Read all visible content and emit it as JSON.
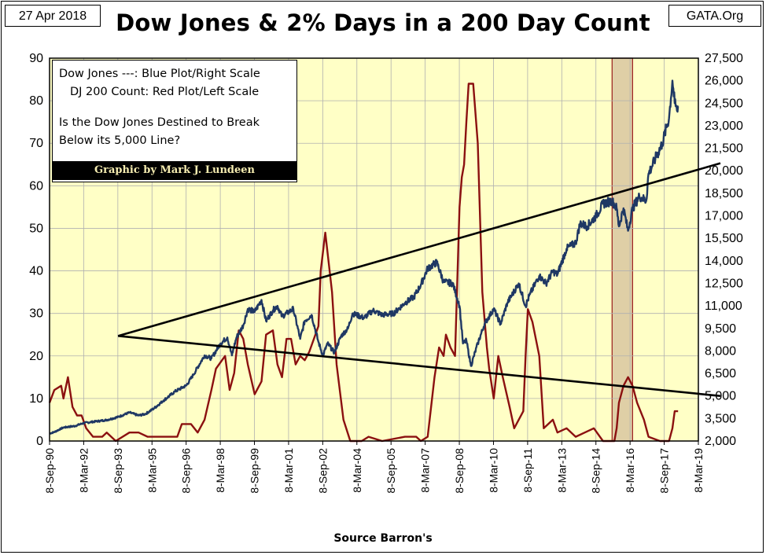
{
  "header": {
    "date": "27 Apr 2018",
    "brand": "GATA.Org",
    "title": "Dow Jones & 2% Days in a 200 Day Count"
  },
  "footer": {
    "source": "Source Barron's"
  },
  "legend": {
    "line1": "Dow Jones ---: Blue Plot/Right Scale",
    "line2": "DJ 200 Count: Red Plot/Left Scale",
    "line3": "Is the Dow Jones Destined to Break",
    "line4": "Below its 5,000 Line?",
    "credit": "Graphic by Mark J. Lundeen"
  },
  "colors": {
    "plot_bg": "#ffffc6",
    "grid": "#b0b0b0",
    "dow_line": "#1f3864",
    "count_line": "#8b1010",
    "trend_line": "#000000",
    "shade_fill": "#d9c7a0",
    "shade_border": "#9b1c1c"
  },
  "chart_data": {
    "type": "line",
    "left_axis": {
      "ticks": [
        0,
        10,
        20,
        30,
        40,
        50,
        60,
        70,
        80,
        90
      ],
      "range": [
        0,
        90
      ]
    },
    "right_axis": {
      "ticks": [
        "2,000",
        "3,500",
        "5,000",
        "6,500",
        "8,000",
        "9,500",
        "11,000",
        "12,500",
        "14,000",
        "15,500",
        "17,000",
        "18,500",
        "20,000",
        "21,500",
        "23,000",
        "24,500",
        "26,000",
        "27,500"
      ],
      "range": [
        2000,
        27500
      ]
    },
    "x_ticks": [
      "8-Sep-90",
      "8-Mar-92",
      "8-Sep-93",
      "8-Mar-95",
      "8-Sep-96",
      "8-Mar-98",
      "8-Sep-99",
      "8-Mar-01",
      "8-Sep-02",
      "8-Mar-04",
      "8-Sep-05",
      "8-Mar-07",
      "8-Sep-08",
      "8-Mar-10",
      "8-Sep-11",
      "8-Mar-13",
      "8-Sep-14",
      "8-Mar-16",
      "8-Sep-17",
      "8-Mar-19"
    ],
    "x_range": [
      1990.69,
      2019.19
    ],
    "shaded_region": [
      2015.4,
      2016.3
    ],
    "series": [
      {
        "name": "Dow Jones",
        "axis": "right",
        "points": [
          [
            1990.69,
            2500
          ],
          [
            1990.9,
            2600
          ],
          [
            1991.3,
            2900
          ],
          [
            1991.8,
            3000
          ],
          [
            1992.2,
            3200
          ],
          [
            1992.7,
            3300
          ],
          [
            1993.2,
            3400
          ],
          [
            1993.7,
            3600
          ],
          [
            1994.2,
            3900
          ],
          [
            1994.6,
            3700
          ],
          [
            1994.9,
            3800
          ],
          [
            1995.3,
            4200
          ],
          [
            1995.7,
            4700
          ],
          [
            1996.2,
            5300
          ],
          [
            1996.7,
            5700
          ],
          [
            1997.0,
            6400
          ],
          [
            1997.5,
            7700
          ],
          [
            1997.8,
            7500
          ],
          [
            1998.2,
            8500
          ],
          [
            1998.5,
            8900
          ],
          [
            1998.7,
            7700
          ],
          [
            1998.9,
            8900
          ],
          [
            1999.2,
            9700
          ],
          [
            1999.4,
            10800
          ],
          [
            1999.7,
            10600
          ],
          [
            2000.0,
            11400
          ],
          [
            2000.2,
            10000
          ],
          [
            2000.5,
            10700
          ],
          [
            2000.7,
            11000
          ],
          [
            2000.9,
            10300
          ],
          [
            2001.2,
            10600
          ],
          [
            2001.4,
            10800
          ],
          [
            2001.7,
            8800
          ],
          [
            2001.9,
            10000
          ],
          [
            2002.2,
            10400
          ],
          [
            2002.5,
            8600
          ],
          [
            2002.7,
            7700
          ],
          [
            2002.9,
            8500
          ],
          [
            2003.2,
            7900
          ],
          [
            2003.5,
            9000
          ],
          [
            2003.8,
            9500
          ],
          [
            2004.0,
            10500
          ],
          [
            2004.5,
            10200
          ],
          [
            2004.9,
            10700
          ],
          [
            2005.3,
            10400
          ],
          [
            2005.8,
            10500
          ],
          [
            2006.3,
            11200
          ],
          [
            2006.7,
            11600
          ],
          [
            2007.0,
            12400
          ],
          [
            2007.3,
            13500
          ],
          [
            2007.7,
            13900
          ],
          [
            2008.0,
            12600
          ],
          [
            2008.4,
            12500
          ],
          [
            2008.7,
            11000
          ],
          [
            2008.85,
            8500
          ],
          [
            2009.0,
            8700
          ],
          [
            2009.2,
            7000
          ],
          [
            2009.5,
            8500
          ],
          [
            2009.8,
            9800
          ],
          [
            2010.2,
            10800
          ],
          [
            2010.5,
            9800
          ],
          [
            2010.8,
            11200
          ],
          [
            2011.3,
            12500
          ],
          [
            2011.6,
            11000
          ],
          [
            2011.8,
            11800
          ],
          [
            2012.2,
            13000
          ],
          [
            2012.5,
            12500
          ],
          [
            2012.8,
            13300
          ],
          [
            2013.0,
            13100
          ],
          [
            2013.4,
            14800
          ],
          [
            2013.8,
            15200
          ],
          [
            2014.0,
            16500
          ],
          [
            2014.3,
            16300
          ],
          [
            2014.7,
            17000
          ],
          [
            2015.0,
            17800
          ],
          [
            2015.4,
            18000
          ],
          [
            2015.6,
            17500
          ],
          [
            2015.7,
            16300
          ],
          [
            2015.9,
            17500
          ],
          [
            2016.1,
            16000
          ],
          [
            2016.3,
            17500
          ],
          [
            2016.6,
            18300
          ],
          [
            2016.9,
            18000
          ],
          [
            2017.0,
            19800
          ],
          [
            2017.3,
            20800
          ],
          [
            2017.6,
            21800
          ],
          [
            2017.9,
            23500
          ],
          [
            2018.05,
            26000
          ],
          [
            2018.15,
            24500
          ],
          [
            2018.25,
            24000
          ],
          [
            2018.32,
            24300
          ]
        ]
      },
      {
        "name": "DJ 200 Count",
        "axis": "left",
        "points": [
          [
            1990.69,
            9
          ],
          [
            1990.9,
            12
          ],
          [
            1991.2,
            13
          ],
          [
            1991.3,
            10
          ],
          [
            1991.5,
            15
          ],
          [
            1991.7,
            8
          ],
          [
            1991.9,
            6
          ],
          [
            1992.1,
            6
          ],
          [
            1992.3,
            3
          ],
          [
            1992.6,
            1
          ],
          [
            1993.0,
            1
          ],
          [
            1993.2,
            2
          ],
          [
            1993.6,
            0
          ],
          [
            1994.2,
            2
          ],
          [
            1994.6,
            2
          ],
          [
            1995.0,
            1
          ],
          [
            1995.7,
            1
          ],
          [
            1996.3,
            1
          ],
          [
            1996.5,
            4
          ],
          [
            1996.9,
            4
          ],
          [
            1997.2,
            2
          ],
          [
            1997.5,
            5
          ],
          [
            1997.8,
            12
          ],
          [
            1998.0,
            17
          ],
          [
            1998.4,
            20
          ],
          [
            1998.6,
            12
          ],
          [
            1998.8,
            16
          ],
          [
            1999.0,
            26
          ],
          [
            1999.2,
            24
          ],
          [
            1999.4,
            18
          ],
          [
            1999.7,
            11
          ],
          [
            2000.0,
            14
          ],
          [
            2000.2,
            25
          ],
          [
            2000.5,
            26
          ],
          [
            2000.7,
            18
          ],
          [
            2000.9,
            15
          ],
          [
            2001.1,
            24
          ],
          [
            2001.3,
            24
          ],
          [
            2001.5,
            18
          ],
          [
            2001.7,
            20
          ],
          [
            2001.9,
            19
          ],
          [
            2002.1,
            21
          ],
          [
            2002.5,
            27
          ],
          [
            2002.6,
            40
          ],
          [
            2002.8,
            49
          ],
          [
            2002.95,
            42
          ],
          [
            2003.1,
            35
          ],
          [
            2003.3,
            18
          ],
          [
            2003.6,
            5
          ],
          [
            2003.9,
            0
          ],
          [
            2004.4,
            0
          ],
          [
            2004.7,
            1
          ],
          [
            2005.3,
            0
          ],
          [
            2006.3,
            1
          ],
          [
            2006.8,
            1
          ],
          [
            2007.0,
            0
          ],
          [
            2007.3,
            1
          ],
          [
            2007.6,
            15
          ],
          [
            2007.8,
            22
          ],
          [
            2008.0,
            20
          ],
          [
            2008.1,
            25
          ],
          [
            2008.3,
            22
          ],
          [
            2008.5,
            20
          ],
          [
            2008.7,
            55
          ],
          [
            2008.8,
            62
          ],
          [
            2008.9,
            65
          ],
          [
            2009.0,
            75
          ],
          [
            2009.1,
            84
          ],
          [
            2009.3,
            84
          ],
          [
            2009.5,
            70
          ],
          [
            2009.7,
            35
          ],
          [
            2009.9,
            22
          ],
          [
            2010.0,
            17
          ],
          [
            2010.2,
            10
          ],
          [
            2010.4,
            20
          ],
          [
            2010.6,
            15
          ],
          [
            2010.9,
            8
          ],
          [
            2011.1,
            3
          ],
          [
            2011.3,
            5
          ],
          [
            2011.5,
            7
          ],
          [
            2011.6,
            20
          ],
          [
            2011.7,
            31
          ],
          [
            2011.9,
            28
          ],
          [
            2012.2,
            20
          ],
          [
            2012.4,
            3
          ],
          [
            2012.8,
            5
          ],
          [
            2013.0,
            2
          ],
          [
            2013.4,
            3
          ],
          [
            2013.8,
            1
          ],
          [
            2014.2,
            2
          ],
          [
            2014.6,
            3
          ],
          [
            2015.0,
            0
          ],
          [
            2015.5,
            0
          ],
          [
            2015.6,
            3
          ],
          [
            2015.7,
            9
          ],
          [
            2015.9,
            13
          ],
          [
            2016.1,
            15
          ],
          [
            2016.3,
            13
          ],
          [
            2016.5,
            9
          ],
          [
            2016.8,
            5
          ],
          [
            2017.0,
            1
          ],
          [
            2017.5,
            0
          ],
          [
            2017.9,
            0
          ],
          [
            2018.05,
            3
          ],
          [
            2018.15,
            7
          ],
          [
            2018.3,
            7
          ]
        ]
      }
    ],
    "trend_lines": [
      {
        "from": [
          1993.7,
          9000
        ],
        "to": [
          2019.19,
          20500
        ],
        "axis": "right"
      },
      {
        "from": [
          1993.7,
          9000
        ],
        "to": [
          2019.19,
          5000
        ],
        "axis": "right"
      }
    ]
  }
}
